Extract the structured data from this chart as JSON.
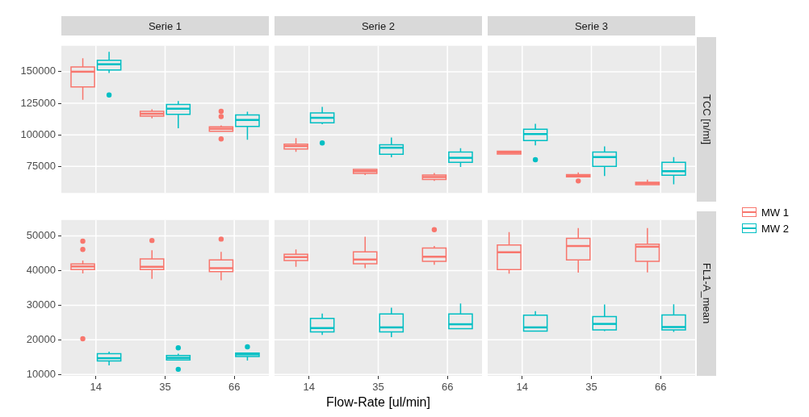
{
  "chart_data": [
    {
      "type": "box",
      "title": "Serie 1",
      "categories": [
        "14",
        "35",
        "66"
      ],
      "ylim": [
        54000,
        170500
      ],
      "yticks": [
        75000,
        100000,
        125000,
        150000
      ],
      "grid": true,
      "tick_labels": "y",
      "series": [
        {
          "color": "#f8766d",
          "boxes": [
            {
              "low": 127800,
              "q1": 138000,
              "median": 150000,
              "q3": 153800,
              "high": 160600
            },
            {
              "low": 113000,
              "q1": 114800,
              "median": 116700,
              "q3": 118600,
              "high": 120200
            },
            {
              "low": 102900,
              "q1": 102900,
              "median": 104800,
              "q3": 106300,
              "high": 107500,
              "outliers": [
                118600,
                114500,
                96800
              ]
            }
          ]
        },
        {
          "color": "#00bfc4",
          "boxes": [
            {
              "low": 149000,
              "q1": 151300,
              "median": 155900,
              "q3": 159100,
              "high": 165800,
              "outliers": [
                131600
              ]
            },
            {
              "low": 105300,
              "q1": 116200,
              "median": 120700,
              "q3": 124000,
              "high": 126800
            },
            {
              "low": 96200,
              "q1": 106700,
              "median": 111800,
              "q3": 115800,
              "high": 118300
            }
          ]
        }
      ]
    },
    {
      "type": "box",
      "title": "Serie 2",
      "categories": [
        "14",
        "35",
        "66"
      ],
      "ylim": [
        54000,
        170500
      ],
      "yticks": [
        75000,
        100000,
        125000,
        150000
      ],
      "grid": true,
      "tick_labels": false,
      "series": [
        {
          "color": "#f8766d",
          "boxes": [
            {
              "low": 86500,
              "q1": 88800,
              "median": 91100,
              "q3": 92600,
              "high": 97400
            },
            {
              "low": 68200,
              "q1": 69400,
              "median": 71200,
              "q3": 72700,
              "high": 72700
            },
            {
              "low": 63600,
              "q1": 64700,
              "median": 66600,
              "q3": 68100,
              "high": 69800
            }
          ]
        },
        {
          "color": "#00bfc4",
          "boxes": [
            {
              "low": 108400,
              "q1": 109500,
              "median": 113500,
              "q3": 117300,
              "high": 122100,
              "outliers": [
                93600
              ]
            },
            {
              "low": 82200,
              "q1": 84600,
              "median": 89800,
              "q3": 92200,
              "high": 97900
            },
            {
              "low": 74600,
              "q1": 78200,
              "median": 81800,
              "q3": 86400,
              "high": 89400
            }
          ]
        }
      ]
    },
    {
      "type": "box",
      "title": "Serie 3",
      "y2label": "TCC [n/ml]",
      "categories": [
        "14",
        "35",
        "66"
      ],
      "ylim": [
        54000,
        170500
      ],
      "yticks": [
        75000,
        100000,
        125000,
        150000
      ],
      "grid": true,
      "tick_labels": false,
      "series": [
        {
          "color": "#f8766d",
          "boxes": [
            {
              "low": 84800,
              "q1": 84800,
              "median": 85900,
              "q3": 87000,
              "high": 87000
            },
            {
              "low": 66800,
              "q1": 66800,
              "median": 67700,
              "q3": 68500,
              "high": 70200,
              "outliers": [
                63500
              ]
            },
            {
              "low": 60500,
              "q1": 60500,
              "median": 61600,
              "q3": 62400,
              "high": 64500
            }
          ]
        },
        {
          "color": "#00bfc4",
          "boxes": [
            {
              "low": 91700,
              "q1": 95500,
              "median": 100600,
              "q3": 104400,
              "high": 108800,
              "outliers": [
                80300
              ]
            },
            {
              "low": 67400,
              "q1": 75000,
              "median": 82400,
              "q3": 86400,
              "high": 90800
            },
            {
              "low": 60900,
              "q1": 68000,
              "median": 71200,
              "q3": 78200,
              "high": 82400
            }
          ]
        }
      ]
    },
    {
      "type": "box",
      "categories": [
        "14",
        "35",
        "66"
      ],
      "ylim": [
        9600,
        54600
      ],
      "yticks": [
        10000,
        20000,
        30000,
        40000,
        50000
      ],
      "grid": true,
      "series": [
        {
          "color": "#f8766d",
          "boxes": [
            {
              "low": 39200,
              "q1": 40300,
              "median": 41200,
              "q3": 41900,
              "high": 42900,
              "outliers": [
                48500,
                46100,
                20300
              ]
            },
            {
              "low": 37600,
              "q1": 40300,
              "median": 41100,
              "q3": 43400,
              "high": 45900,
              "outliers": [
                48700
              ]
            },
            {
              "low": 37200,
              "q1": 39700,
              "median": 40700,
              "q3": 43100,
              "high": 45400,
              "outliers": [
                49100
              ]
            }
          ]
        },
        {
          "color": "#00bfc4",
          "boxes": [
            {
              "low": 12600,
              "q1": 13900,
              "median": 14700,
              "q3": 16000,
              "high": 16600
            },
            {
              "low": 14200,
              "q1": 14200,
              "median": 14800,
              "q3": 15500,
              "high": 16000,
              "outliers": [
                17700,
                11500
              ]
            },
            {
              "low": 14000,
              "q1": 15200,
              "median": 15800,
              "q3": 16200,
              "high": 16300,
              "outliers": [
                18000
              ]
            }
          ]
        }
      ]
    },
    {
      "type": "box",
      "xlabel": "Flow-Rate [ul/min]",
      "categories": [
        "14",
        "35",
        "66"
      ],
      "ylim": [
        9600,
        54600
      ],
      "yticks": [
        10000,
        20000,
        30000,
        40000,
        50000
      ],
      "grid": true,
      "tick_labels": "x",
      "series": [
        {
          "color": "#f8766d",
          "boxes": [
            {
              "low": 41100,
              "q1": 42900,
              "median": 43900,
              "q3": 44700,
              "high": 46100
            },
            {
              "low": 40700,
              "q1": 42000,
              "median": 43200,
              "q3": 45400,
              "high": 49800
            },
            {
              "low": 41700,
              "q1": 42700,
              "median": 44000,
              "q3": 46500,
              "high": 47100,
              "outliers": [
                51800
              ]
            }
          ]
        },
        {
          "color": "#00bfc4",
          "boxes": [
            {
              "low": 21400,
              "q1": 22300,
              "median": 23400,
              "q3": 26200,
              "high": 27600
            },
            {
              "low": 20800,
              "q1": 22300,
              "median": 23600,
              "q3": 27500,
              "high": 29300
            },
            {
              "low": 23200,
              "q1": 23200,
              "median": 24500,
              "q3": 27500,
              "high": 30500
            }
          ]
        }
      ]
    },
    {
      "type": "box",
      "y2label": "FL1-A_mean",
      "legend": "right",
      "categories": [
        "14",
        "35",
        "66"
      ],
      "ylim": [
        9600,
        54600
      ],
      "yticks": [
        10000,
        20000,
        30000,
        40000,
        50000
      ],
      "grid": true,
      "tick_labels": "x",
      "series": [
        {
          "name": "MW 1",
          "color": "#f8766d",
          "boxes": [
            {
              "low": 39100,
              "q1": 40300,
              "median": 45300,
              "q3": 47400,
              "high": 51100
            },
            {
              "low": 39400,
              "q1": 43100,
              "median": 47100,
              "q3": 49300,
              "high": 52300
            },
            {
              "low": 39500,
              "q1": 42700,
              "median": 46900,
              "q3": 47600,
              "high": 52300
            }
          ]
        },
        {
          "name": "MW 2",
          "color": "#00bfc4",
          "boxes": [
            {
              "low": 22500,
              "q1": 22500,
              "median": 23600,
              "q3": 27100,
              "high": 28300
            },
            {
              "low": 22500,
              "q1": 22900,
              "median": 24600,
              "q3": 26700,
              "high": 30200
            },
            {
              "low": 22300,
              "q1": 22900,
              "median": 23700,
              "q3": 27200,
              "high": 30300
            }
          ]
        }
      ]
    }
  ]
}
